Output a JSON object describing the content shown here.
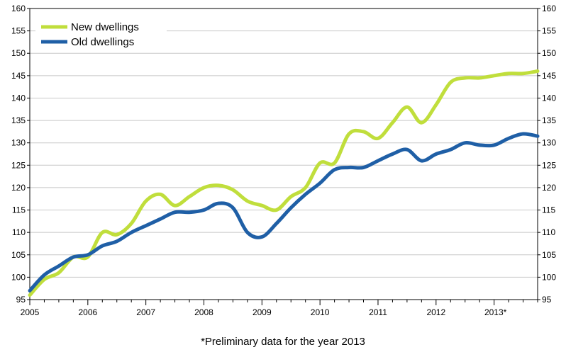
{
  "chart_data": {
    "type": "line",
    "title": "",
    "xlabel": "",
    "ylabel": "",
    "ylim": [
      95,
      160
    ],
    "yticks": [
      95,
      100,
      105,
      110,
      115,
      120,
      125,
      130,
      135,
      140,
      145,
      150,
      155,
      160
    ],
    "x_range": [
      2005.0,
      2013.75
    ],
    "x_tick_labels": [
      "2005",
      "2006",
      "2007",
      "2008",
      "2009",
      "2010",
      "2011",
      "2012",
      "2013*"
    ],
    "y_axis_both_sides": true,
    "grid": "horizontal",
    "legend_position": "top-left",
    "series": [
      {
        "name": "New dwellings",
        "color": "#c0de3c",
        "x": [
          2005.0,
          2005.25,
          2005.5,
          2005.75,
          2006.0,
          2006.25,
          2006.5,
          2006.75,
          2007.0,
          2007.25,
          2007.5,
          2007.75,
          2008.0,
          2008.25,
          2008.5,
          2008.75,
          2009.0,
          2009.25,
          2009.5,
          2009.75,
          2010.0,
          2010.25,
          2010.5,
          2010.75,
          2011.0,
          2011.25,
          2011.5,
          2011.75,
          2012.0,
          2012.25,
          2012.5,
          2012.75,
          2013.0,
          2013.25,
          2013.5,
          2013.75
        ],
        "y": [
          96.0,
          99.5,
          101.0,
          104.5,
          104.5,
          110.0,
          109.5,
          112.0,
          117.0,
          118.5,
          116.0,
          118.0,
          120.0,
          120.5,
          119.5,
          117.0,
          116.0,
          115.0,
          118.0,
          120.0,
          125.5,
          125.5,
          132.0,
          132.5,
          131.0,
          134.5,
          138.0,
          134.5,
          138.5,
          143.5,
          144.5,
          144.5,
          145.0,
          145.5,
          145.5,
          146.0
        ]
      },
      {
        "name": "Old dwellings",
        "color": "#1f5fa6",
        "x": [
          2005.0,
          2005.25,
          2005.5,
          2005.75,
          2006.0,
          2006.25,
          2006.5,
          2006.75,
          2007.0,
          2007.25,
          2007.5,
          2007.75,
          2008.0,
          2008.25,
          2008.5,
          2008.75,
          2009.0,
          2009.25,
          2009.5,
          2009.75,
          2010.0,
          2010.25,
          2010.5,
          2010.75,
          2011.0,
          2011.25,
          2011.5,
          2011.75,
          2012.0,
          2012.25,
          2012.5,
          2012.75,
          2013.0,
          2013.25,
          2013.5,
          2013.75
        ],
        "y": [
          97.0,
          100.5,
          102.5,
          104.5,
          105.0,
          107.0,
          108.0,
          110.0,
          111.5,
          113.0,
          114.5,
          114.5,
          115.0,
          116.5,
          115.5,
          110.0,
          109.0,
          112.0,
          115.5,
          118.5,
          121.0,
          124.0,
          124.5,
          124.5,
          126.0,
          127.5,
          128.5,
          126.0,
          127.5,
          128.5,
          130.0,
          129.5,
          129.5,
          131.0,
          132.0,
          131.5
        ]
      }
    ]
  },
  "footnote": "*Preliminary data for the year 2013"
}
